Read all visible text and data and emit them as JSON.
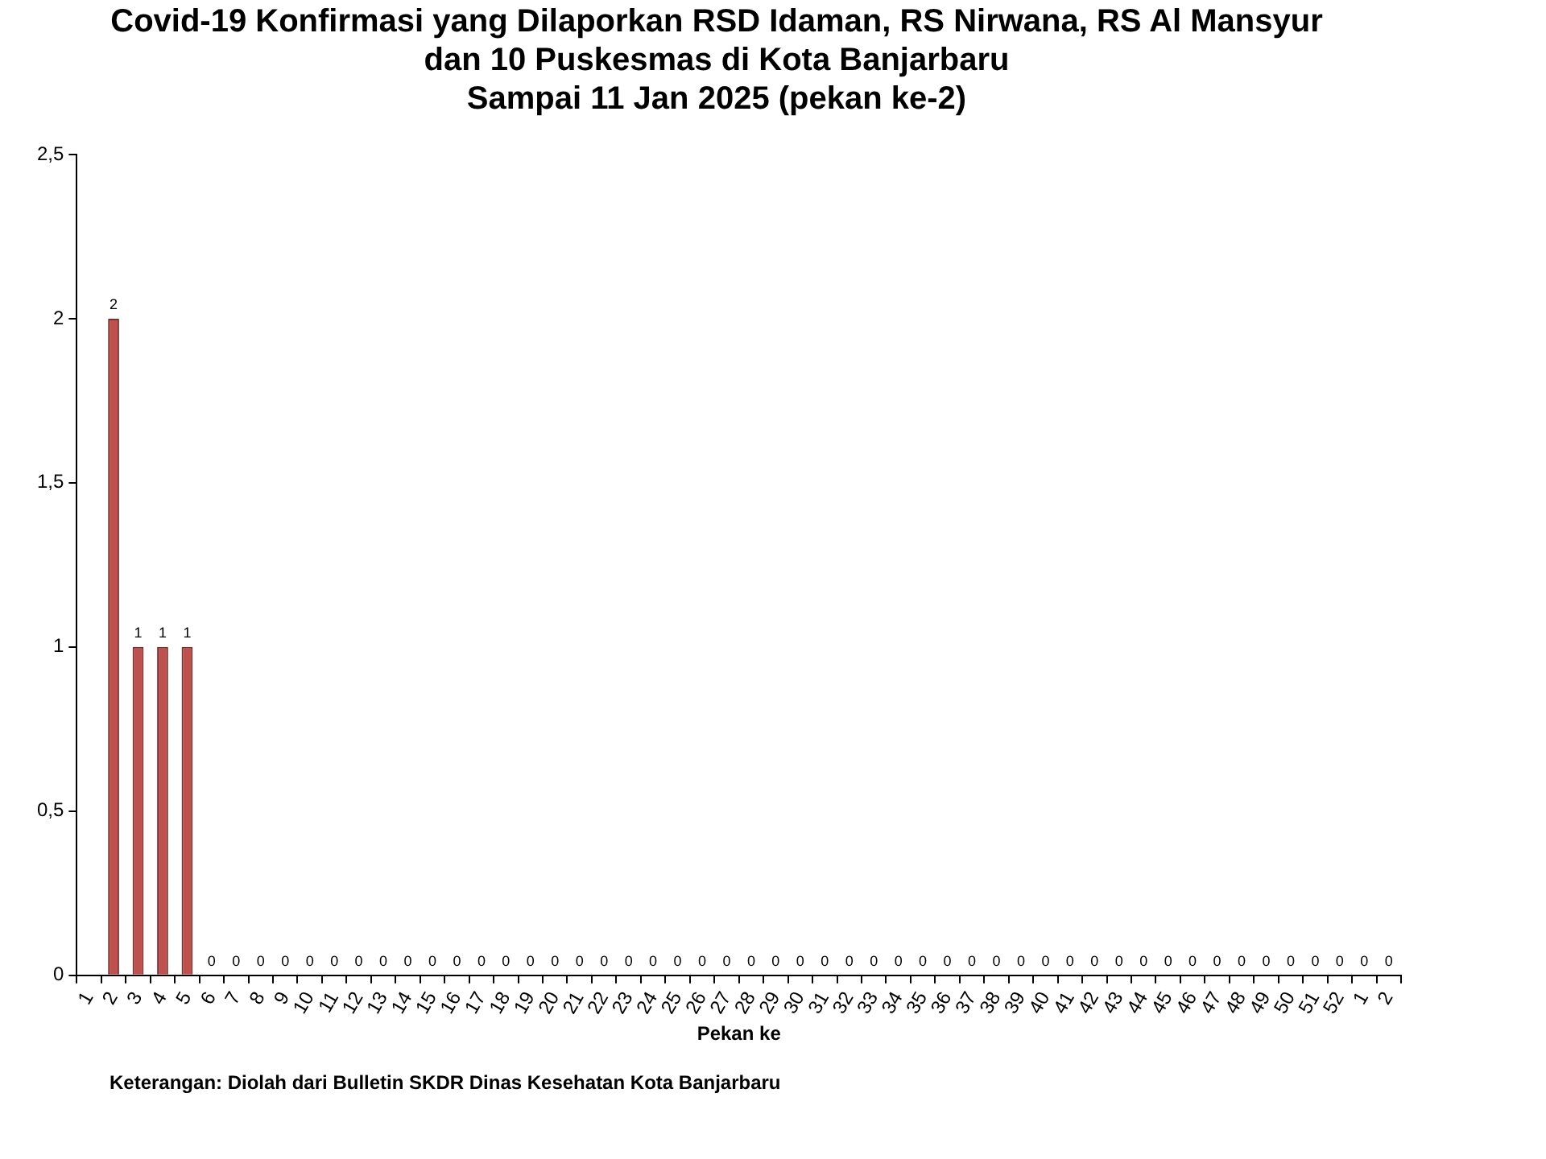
{
  "chart_data": {
    "type": "bar",
    "title": "Covid-19 Konfirmasi yang Dilaporkan RSD Idaman, RS Nirwana, RS Al Mansyur\ndan 10 Puskesmas di Kota Banjarbaru\nSampai 11 Jan 2025 (pekan ke-2)",
    "xlabel": "Pekan ke",
    "categories": [
      "1",
      "2",
      "3",
      "4",
      "5",
      "6",
      "7",
      "8",
      "9",
      "10",
      "11",
      "12",
      "13",
      "14",
      "15",
      "16",
      "17",
      "18",
      "19",
      "20",
      "21",
      "22",
      "23",
      "24",
      "25",
      "26",
      "27",
      "28",
      "29",
      "30",
      "31",
      "32",
      "33",
      "34",
      "35",
      "36",
      "37",
      "38",
      "39",
      "40",
      "41",
      "42",
      "43",
      "44",
      "45",
      "46",
      "47",
      "48",
      "49",
      "50",
      "51",
      "52",
      "1",
      "2"
    ],
    "values": [
      null,
      2,
      1,
      1,
      1,
      0,
      0,
      0,
      0,
      0,
      0,
      0,
      0,
      0,
      0,
      0,
      0,
      0,
      0,
      0,
      0,
      0,
      0,
      0,
      0,
      0,
      0,
      0,
      0,
      0,
      0,
      0,
      0,
      0,
      0,
      0,
      0,
      0,
      0,
      0,
      0,
      0,
      0,
      0,
      0,
      0,
      0,
      0,
      0,
      0,
      0,
      0,
      0,
      0
    ],
    "color": "#c0504d",
    "ylim": [
      0,
      2.5
    ],
    "yticks": [
      0,
      {
        "value": 0.5,
        "label": "0,5"
      },
      1,
      {
        "value": 1.5,
        "label": "1,5"
      },
      2,
      {
        "value": 2.5,
        "label": "2,5"
      }
    ],
    "grid": false,
    "data_labels": true,
    "annotations": [
      "Keterangan: Diolah dari Bulletin SKDR Dinas Kesehatan Kota Banjarbaru"
    ]
  }
}
